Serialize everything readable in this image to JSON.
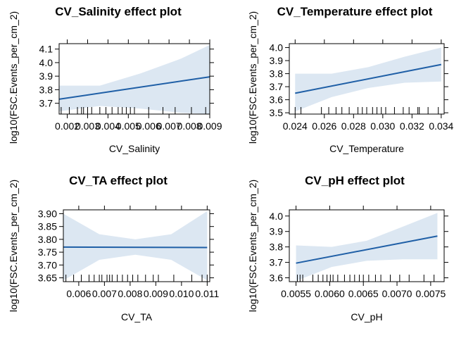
{
  "chart_data": [
    {
      "type": "line",
      "title": "CV_Salinity effect plot",
      "xlabel": "CV_Salinity",
      "ylabel": "log10(FSC.Events_per_cm_2)",
      "xlim": [
        0.0016,
        0.009
      ],
      "ylim": [
        3.62,
        4.14
      ],
      "xticks": [
        0.002,
        0.003,
        0.004,
        0.005,
        0.006,
        0.007,
        0.008,
        0.009
      ],
      "xtick_labels": [
        "0.002",
        "0.003",
        "0.004",
        "0.005",
        "0.006",
        "0.007",
        "0.008",
        "0.009"
      ],
      "yticks": [
        3.7,
        3.8,
        3.9,
        4.0,
        4.1
      ],
      "ytick_labels": [
        "3.7",
        "3.8",
        "3.9",
        "4.0",
        "4.1"
      ],
      "fit": {
        "x": [
          0.0016,
          0.009
        ],
        "y": [
          3.73,
          3.895
        ]
      },
      "band": {
        "x": [
          0.0016,
          0.0036,
          0.0056,
          0.0076,
          0.009
        ],
        "lower": [
          3.64,
          3.68,
          3.66,
          3.63,
          3.62
        ],
        "upper": [
          3.83,
          3.83,
          3.92,
          4.03,
          4.13
        ]
      },
      "rug": [
        0.0017,
        0.0021,
        0.0025,
        0.0027,
        0.0028,
        0.003,
        0.0032,
        0.0036,
        0.0039,
        0.0042,
        0.0045,
        0.0047,
        0.0049,
        0.0051,
        0.0053,
        0.006,
        0.0067,
        0.0073,
        0.0081,
        0.0088
      ]
    },
    {
      "type": "line",
      "title": "CV_Temperature effect plot",
      "xlabel": "CV_Temperature",
      "ylabel": "log10(FSC.Events_per_cm_2)",
      "xlim": [
        0.0236,
        0.0342
      ],
      "ylim": [
        3.49,
        4.03
      ],
      "xticks": [
        0.024,
        0.026,
        0.028,
        0.03,
        0.032,
        0.034
      ],
      "xtick_labels": [
        "0.024",
        "0.026",
        "0.028",
        "0.030",
        "0.032",
        "0.034"
      ],
      "yticks": [
        3.5,
        3.6,
        3.7,
        3.8,
        3.9,
        4.0
      ],
      "ytick_labels": [
        "3.5",
        "3.6",
        "3.7",
        "3.8",
        "3.9",
        "4.0"
      ],
      "fit": {
        "x": [
          0.024,
          0.034
        ],
        "y": [
          3.65,
          3.87
        ]
      },
      "band": {
        "x": [
          0.024,
          0.0265,
          0.029,
          0.0315,
          0.034
        ],
        "lower": [
          3.51,
          3.62,
          3.69,
          3.73,
          3.74
        ],
        "upper": [
          3.8,
          3.8,
          3.85,
          3.93,
          4.0
        ]
      },
      "rug": [
        0.024,
        0.0244,
        0.0258,
        0.0263,
        0.0268,
        0.0272,
        0.0277,
        0.0283,
        0.0286,
        0.0289,
        0.0293,
        0.0296,
        0.0299,
        0.0302,
        0.0308,
        0.0314,
        0.0318,
        0.0324,
        0.0325,
        0.0331,
        0.0338
      ]
    },
    {
      "type": "line",
      "title": "CV_TA effect plot",
      "xlabel": "CV_TA",
      "ylabel": "log10(FSC.Events_per_cm_2)",
      "xlim": [
        0.0054,
        0.0111
      ],
      "ylim": [
        3.635,
        3.915
      ],
      "xticks": [
        0.006,
        0.007,
        0.008,
        0.009,
        0.01,
        0.011
      ],
      "xtick_labels": [
        "0.006",
        "0.007",
        "0.008",
        "0.009",
        "0.010",
        "0.011"
      ],
      "yticks": [
        3.65,
        3.7,
        3.75,
        3.8,
        3.85,
        3.9
      ],
      "ytick_labels": [
        "3.65",
        "3.70",
        "3.75",
        "3.80",
        "3.85",
        "3.90"
      ],
      "fit": {
        "x": [
          0.0054,
          0.011
        ],
        "y": [
          3.77,
          3.768
        ]
      },
      "band": {
        "x": [
          0.0054,
          0.0068,
          0.0082,
          0.0096,
          0.011
        ],
        "lower": [
          3.64,
          3.72,
          3.74,
          3.72,
          3.64
        ],
        "upper": [
          3.9,
          3.82,
          3.8,
          3.82,
          3.91
        ]
      },
      "rug": [
        0.0055,
        0.0058,
        0.0061,
        0.0064,
        0.0066,
        0.0068,
        0.0069,
        0.0071,
        0.0072,
        0.0073,
        0.0075,
        0.0077,
        0.0079,
        0.0081,
        0.0083,
        0.0086,
        0.0089,
        0.0091,
        0.0097,
        0.0104,
        0.0108,
        0.011
      ]
    },
    {
      "type": "line",
      "title": "CV_pH effect plot",
      "xlabel": "CV_pH",
      "ylabel": "log10(FSC.Events_per_cm_2)",
      "xlim": [
        0.0054,
        0.0077
      ],
      "ylim": [
        3.575,
        4.04
      ],
      "xticks": [
        0.0055,
        0.006,
        0.0065,
        0.007,
        0.0075
      ],
      "xtick_labels": [
        "0.0055",
        "0.0060",
        "0.0065",
        "0.0070",
        "0.0075"
      ],
      "yticks": [
        3.6,
        3.7,
        3.8,
        3.9,
        4.0
      ],
      "ytick_labels": [
        "3.6",
        "3.7",
        "3.8",
        "3.9",
        "4.0"
      ],
      "fit": {
        "x": [
          0.0055,
          0.0076
        ],
        "y": [
          3.695,
          3.87
        ]
      },
      "band": {
        "x": [
          0.0055,
          0.00603,
          0.00655,
          0.00708,
          0.0076
        ],
        "lower": [
          3.58,
          3.67,
          3.71,
          3.72,
          3.72
        ],
        "upper": [
          3.81,
          3.8,
          3.84,
          3.93,
          4.02
        ]
      },
      "rug": [
        0.00552,
        0.00556,
        0.0056,
        0.00575,
        0.00583,
        0.0059,
        0.00596,
        0.00601,
        0.00605,
        0.00612,
        0.00622,
        0.0063,
        0.00637,
        0.00644,
        0.0065,
        0.00658,
        0.00668,
        0.00676,
        0.0069,
        0.00704,
        0.00718,
        0.0074,
        0.00755
      ]
    }
  ],
  "colors": {
    "fit": "#1f5fa6",
    "band": "#dce7f2",
    "frame": "#000000"
  }
}
